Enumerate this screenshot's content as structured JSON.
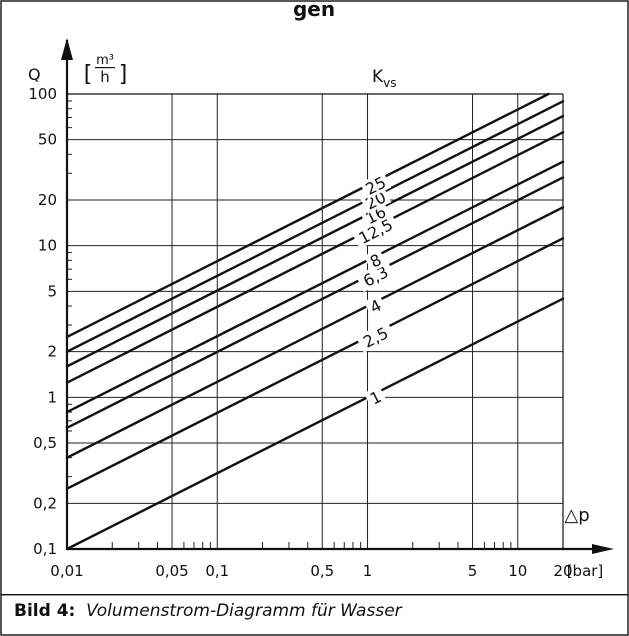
{
  "header_text": "gen",
  "caption": {
    "label": "Bild 4:",
    "text": "Volumenstrom-Diagramm für Wasser"
  },
  "chart_data": {
    "type": "line",
    "title": "",
    "xlabel": "△p",
    "xunit": "[bar]",
    "ylabel": "Q",
    "yunit_num": "m³",
    "yunit_den": "h",
    "family_label": "K",
    "family_label_sub": "vs",
    "xscale": "log",
    "yscale": "log",
    "xlim": [
      0.01,
      20
    ],
    "ylim": [
      0.1,
      100
    ],
    "grid": true,
    "xticks": [
      {
        "v": 0.01,
        "label": "0,01"
      },
      {
        "v": 0.05,
        "label": "0,05"
      },
      {
        "v": 0.1,
        "label": "0,1"
      },
      {
        "v": 0.5,
        "label": "0,5"
      },
      {
        "v": 1,
        "label": "1"
      },
      {
        "v": 5,
        "label": "5"
      },
      {
        "v": 10,
        "label": "10"
      },
      {
        "v": 20,
        "label": "20"
      }
    ],
    "yticks": [
      {
        "v": 0.1,
        "label": "0,1"
      },
      {
        "v": 0.2,
        "label": "0,2"
      },
      {
        "v": 0.5,
        "label": "0,5"
      },
      {
        "v": 1,
        "label": "1"
      },
      {
        "v": 2,
        "label": "2"
      },
      {
        "v": 5,
        "label": "5"
      },
      {
        "v": 10,
        "label": "10"
      },
      {
        "v": 20,
        "label": "20"
      },
      {
        "v": 50,
        "label": "50"
      },
      {
        "v": 100,
        "label": "100"
      }
    ],
    "series": [
      {
        "name": "1",
        "kvs": 1,
        "x": [
          0.01,
          20
        ],
        "y": [
          0.1,
          4.47
        ]
      },
      {
        "name": "2,5",
        "kvs": 2.5,
        "x": [
          0.01,
          20
        ],
        "y": [
          0.25,
          11.18
        ]
      },
      {
        "name": "4",
        "kvs": 4,
        "x": [
          0.01,
          20
        ],
        "y": [
          0.4,
          17.89
        ]
      },
      {
        "name": "6,3",
        "kvs": 6.3,
        "x": [
          0.01,
          20
        ],
        "y": [
          0.63,
          28.17
        ]
      },
      {
        "name": "8",
        "kvs": 8,
        "x": [
          0.01,
          20
        ],
        "y": [
          0.8,
          35.78
        ]
      },
      {
        "name": "12,5",
        "kvs": 12.5,
        "x": [
          0.01,
          20
        ],
        "y": [
          1.25,
          55.9
        ]
      },
      {
        "name": "16",
        "kvs": 16,
        "x": [
          0.01,
          20
        ],
        "y": [
          1.6,
          71.55
        ]
      },
      {
        "name": "20",
        "kvs": 20,
        "x": [
          0.01,
          20
        ],
        "y": [
          2.0,
          89.44
        ]
      },
      {
        "name": "25",
        "kvs": 25,
        "x": [
          0.01,
          16
        ],
        "y": [
          2.5,
          100
        ]
      }
    ]
  }
}
